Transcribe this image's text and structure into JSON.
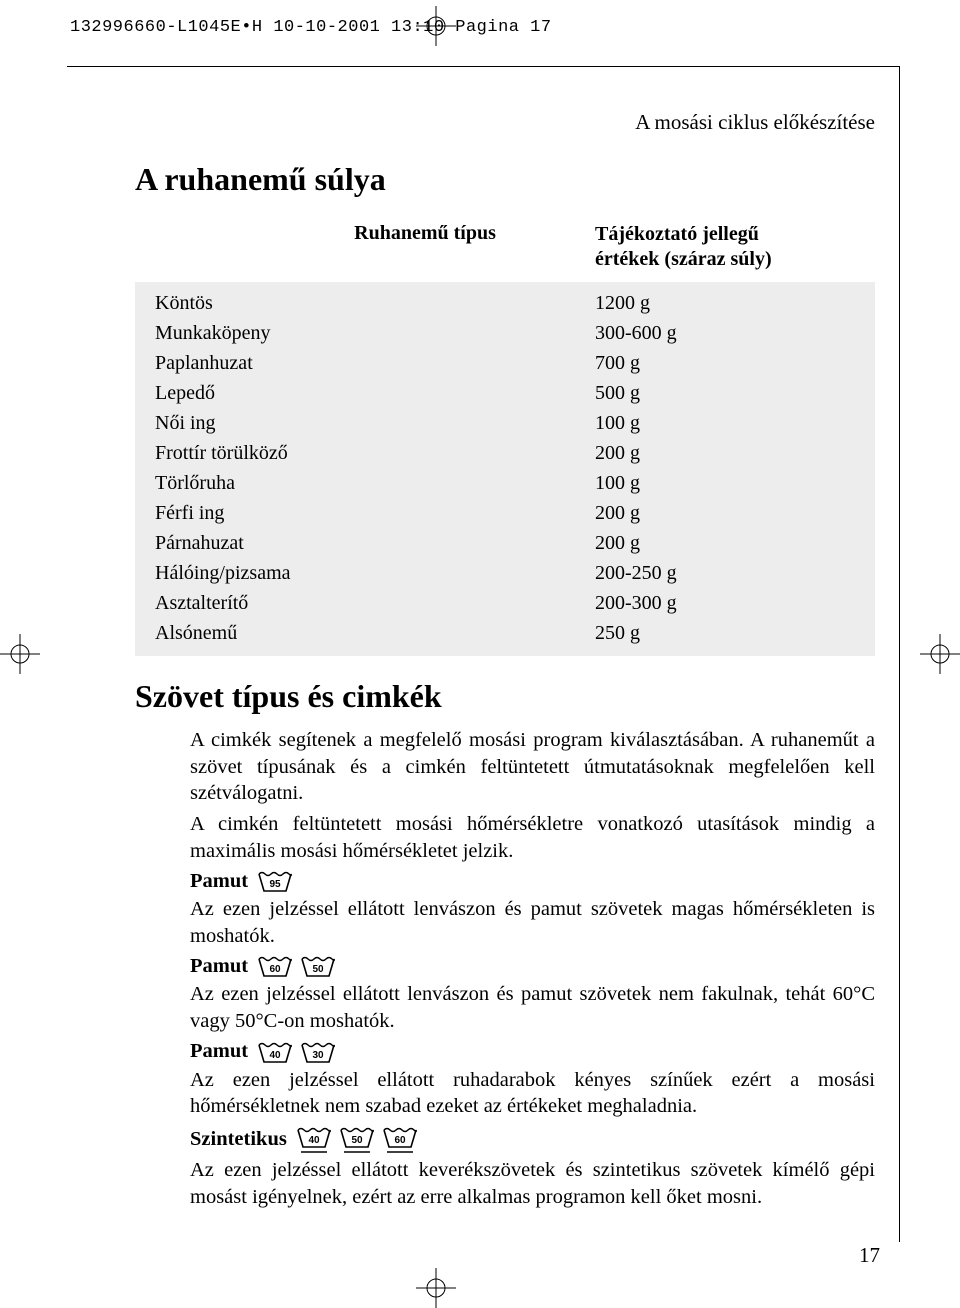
{
  "printHeader": "132996660-L1045E•H  10-10-2001  13:10  Pagina 17",
  "sectionIntro": "A mosási ciklus előkészítése",
  "heading1": "A ruhanemű súlya",
  "table": {
    "headLeft": "Ruhanemű típus",
    "headRight1": "Tájékoztató jellegű",
    "headRight2": "értékek (száraz súly)",
    "rows": [
      {
        "type": "Köntös",
        "weight": "1200 g"
      },
      {
        "type": "Munkaköpeny",
        "weight": "300-600 g"
      },
      {
        "type": "Paplanhuzat",
        "weight": "700 g"
      },
      {
        "type": "Lepedő",
        "weight": "500 g"
      },
      {
        "type": "Női ing",
        "weight": "100 g"
      },
      {
        "type": "Frottír törülköző",
        "weight": "200 g"
      },
      {
        "type": "Törlőruha",
        "weight": "100 g"
      },
      {
        "type": "Férfi ing",
        "weight": "200 g"
      },
      {
        "type": "Párnahuzat",
        "weight": "200 g"
      },
      {
        "type": "Hálóing/pizsama",
        "weight": "200-250 g"
      },
      {
        "type": "Asztalterítő",
        "weight": "200-300 g"
      },
      {
        "type": "Alsónemű",
        "weight": "250 g"
      }
    ]
  },
  "heading2": "Szövet típus és cimkék",
  "para1": "A cimkék segítenek a megfelelő mosási program kiválasztásában. A ruhaneműt a szövet típusának és a cimkén feltüntetett útmutatásoknak megfelelően kell szétválogatni.",
  "para2": "A cimkén feltüntetett mosási hőmérsékletre vonatkozó utasítások mindig a maximális mosási hőmérsékletet jelzik.",
  "label1": "Pamut",
  "label1_temps": [
    "95"
  ],
  "para3": "Az ezen jelzéssel ellátott lenvászon és pamut szövetek magas hőmérsékleten is moshatók.",
  "label2": "Pamut",
  "label2_temps": [
    "60",
    "50"
  ],
  "para4": "Az ezen jelzéssel ellátott lenvászon és pamut szövetek nem fakulnak, tehát 60°C vagy 50°C-on moshatók.",
  "label3": "Pamut",
  "label3_temps": [
    "40",
    "30"
  ],
  "para5": "Az ezen jelzéssel ellátott ruhadarabok kényes színűek ezért a mosási hőmérsékletnek nem szabad ezeket az értékeket meghaladnia.",
  "label4": "Szintetikus",
  "label4_temps": [
    "40",
    "50",
    "60"
  ],
  "label4_underline": true,
  "para6": "Az ezen jelzéssel ellátott keverékszövetek és szintetikus szövetek kímélő gépi mosást igényelnek, ezért az erre alkalmas programon kell őket mosni.",
  "pageNumber": "17"
}
